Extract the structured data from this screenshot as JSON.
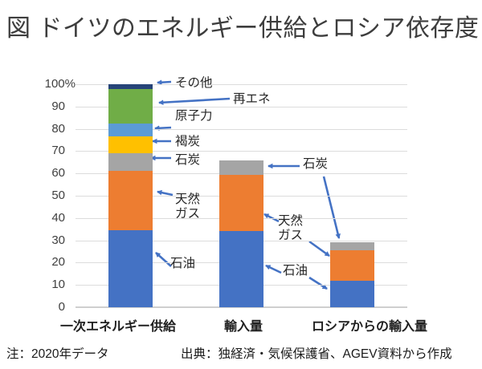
{
  "title": "図 ドイツのエネルギー供給とロシア依存度",
  "footer": {
    "note": "注：2020年データ",
    "source": "出典：独経済・気候保護省、AGEV資料から作成"
  },
  "y_axis": {
    "ticks": [
      0,
      10,
      20,
      30,
      40,
      50,
      60,
      70,
      80,
      90,
      100
    ],
    "unit_suffix": "%"
  },
  "chart_data": {
    "type": "bar",
    "stacked": true,
    "unit": "%",
    "title": "図 ドイツのエネルギー供給とロシア依存度",
    "categories": [
      "一次エネルギー供給",
      "輸入量",
      "ロシアからの輸入量"
    ],
    "series": [
      {
        "name": "石油",
        "color": "#4472C4",
        "values": [
          34.5,
          34.0,
          12.0
        ]
      },
      {
        "name": "天然ガス",
        "color": "#ED7D31",
        "values": [
          26.5,
          25.5,
          13.5
        ]
      },
      {
        "name": "石炭",
        "color": "#A5A5A5",
        "values": [
          8.0,
          6.5,
          3.5
        ]
      },
      {
        "name": "褐炭",
        "color": "#FFC000",
        "values": [
          7.5,
          0,
          0
        ]
      },
      {
        "name": "原子力",
        "color": "#5B9BD5",
        "values": [
          6.0,
          0,
          0
        ]
      },
      {
        "name": "再エネ",
        "color": "#70AD47",
        "values": [
          15.5,
          0,
          0
        ]
      },
      {
        "name": "その他",
        "color": "#264478",
        "values": [
          2.0,
          0,
          0
        ]
      }
    ],
    "totals": [
      100,
      66,
      29
    ],
    "ylim": [
      0,
      100
    ],
    "grid": true,
    "legend": "none",
    "annotation_color": "#4472C4",
    "annotations": [
      {
        "id": "other",
        "lines": [
          "その他"
        ]
      },
      {
        "id": "renewables",
        "lines": [
          "再エネ"
        ]
      },
      {
        "id": "nuclear",
        "lines": [
          "原子力"
        ]
      },
      {
        "id": "lignite",
        "lines": [
          "褐炭"
        ]
      },
      {
        "id": "coal-1",
        "lines": [
          "石炭"
        ]
      },
      {
        "id": "gas-1",
        "lines": [
          "天然",
          "ガス"
        ]
      },
      {
        "id": "oil-1",
        "lines": [
          "石油"
        ]
      },
      {
        "id": "coal-2",
        "lines": [
          "石炭"
        ]
      },
      {
        "id": "gas-2",
        "lines": [
          "天然",
          "ガス"
        ]
      },
      {
        "id": "oil-2",
        "lines": [
          "石油"
        ]
      }
    ]
  }
}
